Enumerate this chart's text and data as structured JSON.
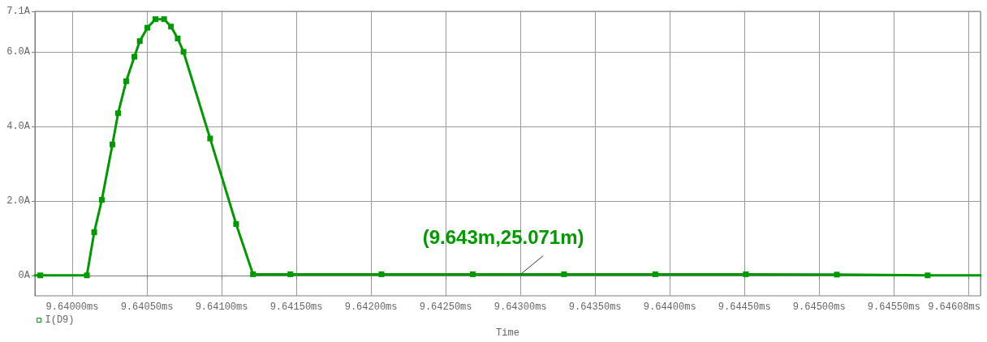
{
  "chart_data": {
    "type": "line",
    "xlabel": "Time",
    "x": [
      9.63975,
      9.639786,
      9.640098,
      9.640147,
      9.640198,
      9.640269,
      9.640307,
      9.640361,
      9.640416,
      9.640452,
      9.640503,
      9.640557,
      9.640615,
      9.640661,
      9.640706,
      9.640745,
      9.640923,
      9.641097,
      9.64121,
      9.64146,
      9.64207,
      9.642681,
      9.643292,
      9.643903,
      9.644509,
      9.645118,
      9.645726,
      9.64608
    ],
    "series": [
      {
        "name": "I(D9)",
        "color": "#009900",
        "values": [
          0,
          0,
          0,
          1.16,
          2.03,
          3.52,
          4.36,
          5.22,
          5.88,
          6.3,
          6.66,
          6.89,
          6.89,
          6.69,
          6.37,
          6.01,
          3.68,
          1.38,
          0.03,
          0.03,
          0.03,
          0.03,
          0.03,
          0.03,
          0.03,
          0.02,
          0,
          0
        ]
      }
    ],
    "xlim": [
      9.63975,
      9.64608
    ],
    "ylim": [
      -0.55,
      7.1
    ],
    "xticks": [
      {
        "value": 9.64,
        "label": "9.64000ms"
      },
      {
        "value": 9.6405,
        "label": "9.64050ms"
      },
      {
        "value": 9.641,
        "label": "9.64100ms"
      },
      {
        "value": 9.6415,
        "label": "9.64150ms"
      },
      {
        "value": 9.642,
        "label": "9.64200ms"
      },
      {
        "value": 9.6425,
        "label": "9.64250ms"
      },
      {
        "value": 9.643,
        "label": "9.64300ms"
      },
      {
        "value": 9.6435,
        "label": "9.64350ms"
      },
      {
        "value": 9.644,
        "label": "9.64400ms"
      },
      {
        "value": 9.6445,
        "label": "9.64450ms"
      },
      {
        "value": 9.645,
        "label": "9.64500ms"
      },
      {
        "value": 9.6455,
        "label": "9.64550ms"
      },
      {
        "value": 9.646,
        "label": null
      },
      {
        "value": 9.64608,
        "label": "9.64608ms"
      }
    ],
    "yticks": [
      {
        "value": 0,
        "label": "0A"
      },
      {
        "value": 2,
        "label": "2.0A"
      },
      {
        "value": 4,
        "label": "4.0A"
      },
      {
        "value": 6,
        "label": "6.0A"
      },
      {
        "value": 7.1,
        "label": "7.1A"
      }
    ],
    "grid": true,
    "legend": "bottom left",
    "marker": "square",
    "line_style": "solid",
    "annotations": [
      {
        "text": "(9.643m,25.071m)",
        "x": 9.643,
        "y": 0.025071
      }
    ]
  }
}
